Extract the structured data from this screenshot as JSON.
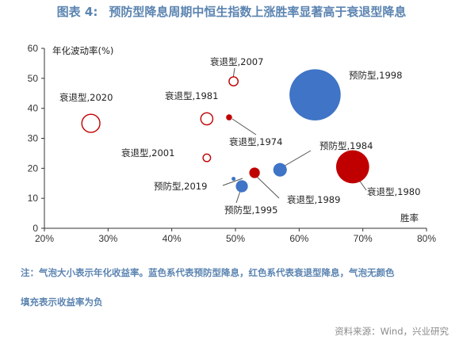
{
  "title": {
    "figure_no": "图表 4:",
    "text": "预防型降息周期中恒生指数上涨胜率显著高于衰退型降息"
  },
  "notes": [
    "注：气泡大小表示年化收益率。蓝色系代表预防型降息，红色系代表衰退型降息，气泡无颜色",
    "填充表示收益率为负"
  ],
  "source": "资料来源：Wind，兴业研究",
  "colors": {
    "preventive": "#3F74C6",
    "recession": "#C00000",
    "axis": "#333333",
    "leader": "#555555"
  },
  "chart_data": {
    "type": "bubble",
    "xlabel": "胜率",
    "ylabel": "年化波动率(%)",
    "xlim": [
      0.2,
      0.8
    ],
    "ylim": [
      0,
      60
    ],
    "xticks": [
      0.2,
      0.3,
      0.4,
      0.5,
      0.6,
      0.7,
      0.8
    ],
    "xtick_labels": [
      "20%",
      "30%",
      "40%",
      "50%",
      "60%",
      "70%",
      "80%"
    ],
    "yticks": [
      0,
      10,
      20,
      30,
      40,
      50,
      60
    ],
    "ytick_labels": [
      "0",
      "10",
      "20",
      "30",
      "40",
      "50",
      "60"
    ],
    "grid": false,
    "points": [
      {
        "label": "预防型,1998",
        "type": "preventive",
        "filled": true,
        "x": 0.625,
        "y": 44.5,
        "size": 34
      },
      {
        "label": "预防型,1984",
        "type": "preventive",
        "filled": true,
        "x": 0.57,
        "y": 19.5,
        "size": 9
      },
      {
        "label": "预防型,2019",
        "type": "preventive",
        "filled": true,
        "x": 0.497,
        "y": 16.5,
        "size": 2
      },
      {
        "label": "预防型,1995",
        "type": "preventive",
        "filled": true,
        "x": 0.51,
        "y": 14.0,
        "size": 8
      },
      {
        "label": "衰退型,1980",
        "type": "recession",
        "filled": true,
        "x": 0.684,
        "y": 20.5,
        "size": 22
      },
      {
        "label": "衰退型,1989",
        "type": "recession",
        "filled": true,
        "x": 0.53,
        "y": 18.5,
        "size": 7
      },
      {
        "label": "衰退型,1974",
        "type": "recession",
        "filled": true,
        "x": 0.49,
        "y": 37.0,
        "size": 4
      },
      {
        "label": "衰退型,2007",
        "type": "recession",
        "filled": false,
        "x": 0.497,
        "y": 49.0,
        "size": 6
      },
      {
        "label": "衰退型,2020",
        "type": "recession",
        "filled": false,
        "x": 0.273,
        "y": 35.0,
        "size": 12
      },
      {
        "label": "衰退型,1981",
        "type": "recession",
        "filled": false,
        "x": 0.455,
        "y": 36.5,
        "size": 8
      },
      {
        "label": "衰退型,2001",
        "type": "recession",
        "filled": false,
        "x": 0.455,
        "y": 23.5,
        "size": 5
      }
    ]
  }
}
